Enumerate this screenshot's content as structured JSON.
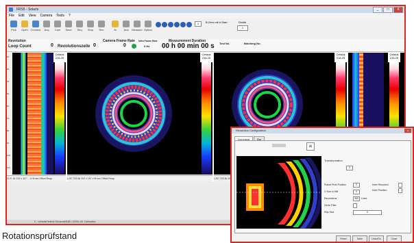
{
  "window": {
    "title": "IRIS5 - Solaris",
    "menu": [
      "File",
      "Edit",
      "View",
      "Camera",
      "Tools",
      "?"
    ],
    "controls": [
      "_",
      "□",
      "X"
    ]
  },
  "toolbar": {
    "buttons": [
      {
        "label": "Pick",
        "icon": "camera-icon",
        "color": "#4a86c7"
      },
      {
        "label": "Open",
        "icon": "folder-icon",
        "color": "#e6b53a"
      },
      {
        "label": "Connect",
        "icon": "connect-icon",
        "color": "#4a86c7"
      },
      {
        "label": "Acq",
        "icon": "record-icon",
        "color": "#8e8e8e"
      },
      {
        "label": "Cam",
        "icon": "cam-icon",
        "color": "#8e8e8e"
      },
      {
        "label": "Save",
        "icon": "save-icon",
        "color": "#8e8e8e"
      },
      {
        "label": "Seq",
        "icon": "seq-icon",
        "color": "#8e8e8e"
      },
      {
        "label": "Stop",
        "icon": "stop-icon",
        "color": "#8e8e8e"
      },
      {
        "label": "Rec",
        "icon": "rec-icon",
        "color": "#8e8e8e"
      },
      {
        "label": "Ai",
        "icon": "ai-icon",
        "color": "#e6b53a"
      },
      {
        "label": "Ana",
        "icon": "analysis-icon",
        "color": "#8e8e8e"
      },
      {
        "label": "Measure",
        "icon": "measure-icon",
        "color": "#8e8e8e"
      },
      {
        "label": "Option",
        "icon": "option-icon",
        "color": "#8e8e8e"
      }
    ],
    "frame_value": "1",
    "zero_label": "B-Zero mit d Start",
    "divide_label": "Divide",
    "divide_value": "1"
  },
  "infobar": {
    "revolution_label": "Revolution",
    "loop_count_label": "Loop Count",
    "loop_count_value": "0",
    "revolutions_label": "Revolutionszeile",
    "revolutions_value": "0",
    "camera_frame_label": "Camera Frame Rate",
    "camera_frame_value": "0",
    "ir_frame_label": "Infra Frame Rate",
    "ir_frame_value": "0 Hz",
    "measure_duration_label": "Measurement Duration",
    "measure_duration_value": "00 h 00 min 00 s",
    "test_no_label": "Test No.",
    "batch_no_label": "Batching No."
  },
  "colorbars": {
    "unit": "Celsius",
    "max_value": "216.25",
    "min_value": "20.0"
  },
  "ruler_ticks": [
    "20",
    "25",
    "30",
    "35",
    "40",
    "45",
    "50",
    "55",
    "60",
    "65",
    "70",
    "75",
    "80",
    "85",
    "90",
    "95",
    "100",
    "105",
    "110"
  ],
  "panel_status": [
    "CLS   -5L   202 x 157   ...   x+8 mm   Offset:Reap",
    "L287   203.5k   202 x 157   x+8 mm   Offset:Reap",
    "L287   203.5k   202 x 157   x+8 mm   Offset:Reap"
  ],
  "statusbar": "0 - Lehrsitz/Helmut Stunzweil/5481 1000h-101 Calibration",
  "caption": "Rotationsprüfstand",
  "dialog": {
    "title": "Revolution Configuration",
    "tabs": [
      "Durchlauf",
      "Bar"
    ],
    "transformation_label": "Transformation",
    "transformation_value": "0",
    "fields": [
      {
        "label": "Frame Pixel Position",
        "value": "0"
      },
      {
        "label": "X Size in Mill",
        "value": "0"
      },
      {
        "label": "Revolutions",
        "value": "360",
        "unit": "Lines"
      },
      {
        "label": "Circle Filter",
        "value": ""
      },
      {
        "label": "Ellip Size",
        "value": "0"
      }
    ],
    "checkbox_labels": [
      "Inner Revolved",
      "Inner Position"
    ],
    "buttons": [
      "Reset",
      "Save",
      "Undo/Do",
      "Close"
    ]
  }
}
